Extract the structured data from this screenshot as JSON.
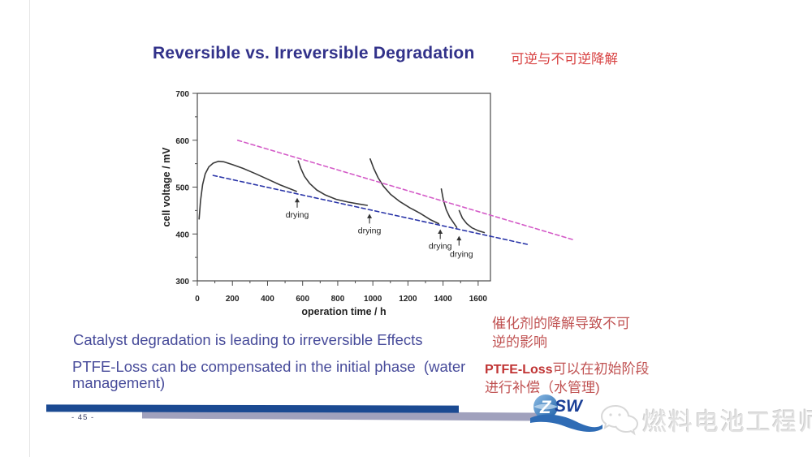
{
  "slide": {
    "title": "Reversible vs. Irreversible Degradation",
    "title_zh": "可逆与不可逆降解",
    "body": {
      "line1": "Catalyst degradation is leading to irreversible Effects",
      "line2": "PTFE-Loss can be compensated in the initial phase  (water\nmanagement)"
    },
    "body_zh": {
      "p1": "催化剂的降解导致不可\n逆的影响",
      "p2_latin": "PTFE-Loss",
      "p2_rest": "可以在初始阶段\n进行补偿（水管理)"
    },
    "footer": {
      "page_number": "- 45 -",
      "logo_z": "Z",
      "logo_sw": "SW",
      "watermark": "燃料电池工程师"
    },
    "colors": {
      "title_blue": "#32328a",
      "body_blue": "#474b9a",
      "body_red": "#c05252",
      "bar_blue": "#1b4a92",
      "bar_gray": "#a0a1bd",
      "watermark_gray": "#e2e2e2"
    }
  },
  "chart_data": {
    "type": "line",
    "title": "",
    "xlabel": "operation time / h",
    "ylabel": "cell voltage / mV",
    "xlim": [
      0,
      1670
    ],
    "ylim": [
      300,
      700
    ],
    "x_ticks": [
      0,
      200,
      400,
      600,
      800,
      1000,
      1200,
      1400,
      1600
    ],
    "x_minor_step": 100,
    "y_ticks": [
      300,
      400,
      500,
      600,
      700
    ],
    "y_minor_step": 50,
    "grid": false,
    "legend": "none",
    "axis_color": "#4a4a4a",
    "tick_label_color": "#222222",
    "series": [
      {
        "name": "voltage-run-1",
        "color": "#3a3a3a",
        "style": "solid",
        "points": [
          [
            10,
            432
          ],
          [
            18,
            470
          ],
          [
            30,
            505
          ],
          [
            45,
            528
          ],
          [
            65,
            543
          ],
          [
            90,
            551
          ],
          [
            120,
            555
          ],
          [
            150,
            554
          ],
          [
            200,
            548
          ],
          [
            260,
            540
          ],
          [
            330,
            529
          ],
          [
            400,
            517
          ],
          [
            470,
            505
          ],
          [
            530,
            496
          ],
          [
            565,
            491
          ]
        ]
      },
      {
        "name": "voltage-run-2-after-drying",
        "color": "#3a3a3a",
        "style": "solid",
        "points": [
          [
            575,
            556
          ],
          [
            590,
            540
          ],
          [
            610,
            523
          ],
          [
            640,
            508
          ],
          [
            680,
            494
          ],
          [
            730,
            483
          ],
          [
            790,
            474
          ],
          [
            860,
            468
          ],
          [
            920,
            464
          ],
          [
            968,
            461
          ]
        ]
      },
      {
        "name": "voltage-run-3-after-drying",
        "color": "#3a3a3a",
        "style": "solid",
        "points": [
          [
            985,
            560
          ],
          [
            1005,
            540
          ],
          [
            1030,
            520
          ],
          [
            1060,
            502
          ],
          [
            1100,
            485
          ],
          [
            1150,
            470
          ],
          [
            1210,
            456
          ],
          [
            1270,
            444
          ],
          [
            1330,
            430
          ],
          [
            1375,
            422
          ]
        ]
      },
      {
        "name": "voltage-run-4-after-drying",
        "color": "#3a3a3a",
        "style": "solid",
        "points": [
          [
            1390,
            496
          ],
          [
            1402,
            472
          ],
          [
            1418,
            452
          ],
          [
            1438,
            436
          ],
          [
            1460,
            424
          ],
          [
            1478,
            414
          ]
        ]
      },
      {
        "name": "voltage-run-5-after-drying",
        "color": "#3a3a3a",
        "style": "solid",
        "points": [
          [
            1492,
            450
          ],
          [
            1510,
            434
          ],
          [
            1535,
            422
          ],
          [
            1565,
            413
          ],
          [
            1600,
            407
          ],
          [
            1635,
            403
          ]
        ]
      },
      {
        "name": "reversible-degradation-trend",
        "color": "#d45cc8",
        "style": "dashed",
        "points": [
          [
            230,
            600
          ],
          [
            2140,
            388
          ]
        ]
      },
      {
        "name": "irreversible-degradation-trend",
        "color": "#2a35a8",
        "style": "dashed",
        "points": [
          [
            90,
            525
          ],
          [
            1890,
            377
          ]
        ]
      }
    ],
    "annotations": [
      {
        "label": "drying",
        "x": 569
      },
      {
        "label": "drying",
        "x": 981
      },
      {
        "label": "drying",
        "x": 1384
      },
      {
        "label": "drying",
        "x": 1491,
        "arrow_drop": 8,
        "label_dx": 3,
        "label_dy": 2
      }
    ]
  }
}
